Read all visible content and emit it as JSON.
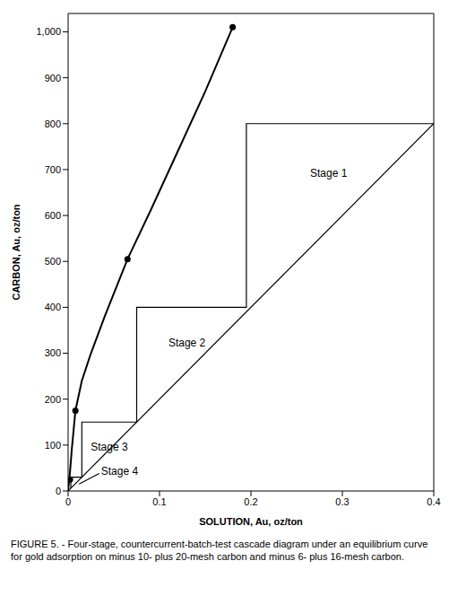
{
  "chart_data": {
    "type": "line",
    "title": "FIGURE 5. - Four-stage, countercurrent-batch-test cascade diagram under an equilibrium curve for gold adsorption on minus 10- plus 20-mesh carbon and minus 6- plus 16-mesh carbon.",
    "x_label": "SOLUTION, Au, oz/ton",
    "y_label": "CARBON, Au, oz/ton",
    "xlim": [
      0,
      0.4
    ],
    "xticks": [
      0,
      0.1,
      0.2,
      0.3,
      0.4
    ],
    "ylim": [
      0,
      1040
    ],
    "yticks": [
      0,
      100,
      200,
      300,
      400,
      500,
      600,
      700,
      800,
      900,
      {
        "value": 1000,
        "label": "1,000"
      }
    ],
    "grid": false,
    "series": [
      {
        "type": "line",
        "color": "#000000",
        "marker": "none",
        "line_style": "solid",
        "x": [
          0,
          0.001,
          0.002,
          0.004,
          0.008,
          0.015,
          0.025,
          0.04,
          0.065,
          0.09,
          0.12,
          0.15,
          0.18
        ],
        "values": [
          0,
          20,
          40,
          90,
          175,
          240,
          300,
          380,
          505,
          610,
          740,
          870,
          1010
        ]
      },
      {
        "type": "scatter",
        "color": "#000000",
        "marker": "circle",
        "x": [
          0.002,
          0.008,
          0.065,
          0.18
        ],
        "values": [
          25,
          175,
          505,
          1010
        ]
      },
      {
        "type": "line",
        "color": "#000000",
        "marker": "none",
        "line_style": "solid",
        "x": [
          0,
          0.4
        ],
        "values": [
          0,
          800
        ]
      },
      {
        "type": "line",
        "color": "#000000",
        "marker": "none",
        "line_style": "solid",
        "x": [
          0.4,
          0.195,
          0.195,
          0.075,
          0.075,
          0.015,
          0.015,
          0.003,
          0.003
        ],
        "values": [
          800,
          800,
          400,
          400,
          150,
          150,
          30,
          30,
          6
        ]
      },
      {
        "type": "line",
        "color": "#000000",
        "marker": "none",
        "line_style": "solid",
        "x": [
          0.012,
          0.034
        ],
        "values": [
          15,
          38
        ]
      }
    ],
    "annotations": [
      {
        "text": "Stage 1",
        "x": 0.285,
        "y": 690
      },
      {
        "text": "Stage 2",
        "x": 0.13,
        "y": 320
      },
      {
        "text": "Stage 3",
        "x": 0.045,
        "y": 95
      },
      {
        "text": "Stage 4",
        "x": 0.036,
        "y": 42
      }
    ]
  }
}
